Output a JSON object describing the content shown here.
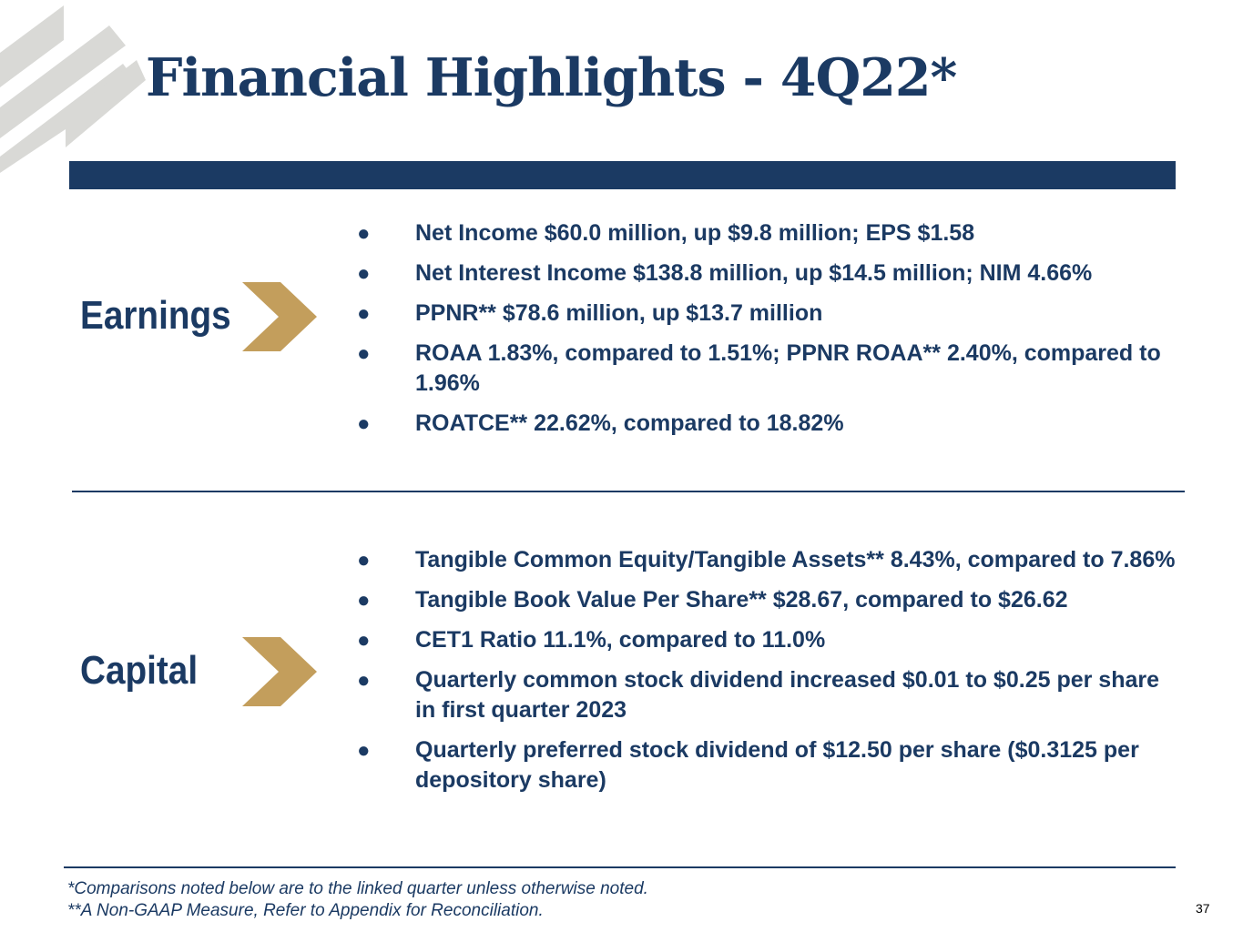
{
  "title": "Financial Highlights - 4Q22*",
  "colors": {
    "navy": "#1b3a63",
    "gold": "#c39e5c",
    "stripe_gray": "#d9d9d6"
  },
  "icons": {
    "logo": "diagonal-stripes-logo",
    "section_marker": "chevron-right-icon"
  },
  "sections": [
    {
      "label": "Earnings",
      "bullets": [
        "Net Income $60.0 million, up $9.8 million; EPS $1.58",
        "Net Interest Income $138.8 million, up $14.5 million; NIM 4.66%",
        "PPNR** $78.6 million, up $13.7 million",
        "ROAA 1.83%, compared to 1.51%; PPNR ROAA** 2.40%, compared to 1.96%",
        "ROATCE** 22.62%, compared to 18.82%"
      ]
    },
    {
      "label": "Capital",
      "bullets": [
        "Tangible Common Equity/Tangible Assets** 8.43%, compared to 7.86%",
        "Tangible Book Value Per Share** $28.67, compared to $26.62",
        "CET1 Ratio 11.1%, compared to 11.0%",
        "Quarterly common stock dividend increased $0.01 to $0.25 per share in first quarter 2023",
        "Quarterly preferred stock dividend of $12.50 per share ($0.3125 per depository share)"
      ]
    }
  ],
  "footnotes": [
    "*Comparisons noted below are to the linked quarter unless otherwise noted.",
    "**A Non-GAAP Measure, Refer to Appendix for Reconciliation."
  ],
  "page_number": "37"
}
